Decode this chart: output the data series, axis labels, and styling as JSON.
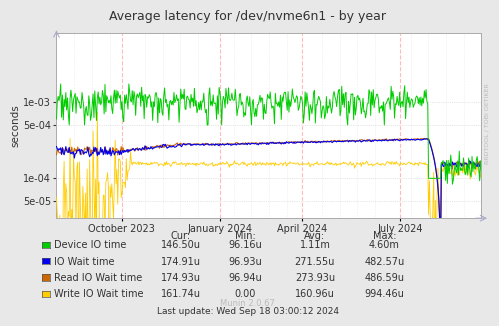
{
  "title": "Average latency for /dev/nvme6n1 - by year",
  "ylabel": "seconds",
  "background_color": "#e8e8e8",
  "plot_bg_color": "#ffffff",
  "x_tick_labels": [
    "October 2023",
    "January 2024",
    "April 2024",
    "July 2024"
  ],
  "oct2023": 0.154,
  "jan2024": 0.385,
  "apr2024": 0.577,
  "jul2024": 0.808,
  "legend_entries": [
    {
      "label": "Device IO time",
      "color": "#00cc00"
    },
    {
      "label": "IO Wait time",
      "color": "#0000ee"
    },
    {
      "label": "Read IO Wait time",
      "color": "#cc6600"
    },
    {
      "label": "Write IO Wait time",
      "color": "#ffcc00"
    }
  ],
  "table_headers": [
    "Cur:",
    "Min:",
    "Avg:",
    "Max:"
  ],
  "table_rows": [
    [
      "146.50u",
      "96.16u",
      "1.11m",
      "4.60m"
    ],
    [
      "174.91u",
      "96.93u",
      "271.55u",
      "482.57u"
    ],
    [
      "174.93u",
      "96.94u",
      "273.93u",
      "486.59u"
    ],
    [
      "161.74u",
      "0.00",
      "160.96u",
      "994.46u"
    ]
  ],
  "last_update": "Last update: Wed Sep 18 03:00:12 2024",
  "munin_version": "Munin 2.0.67",
  "rrdtool_label": "RRDTOOL / TOBI OETIKER"
}
